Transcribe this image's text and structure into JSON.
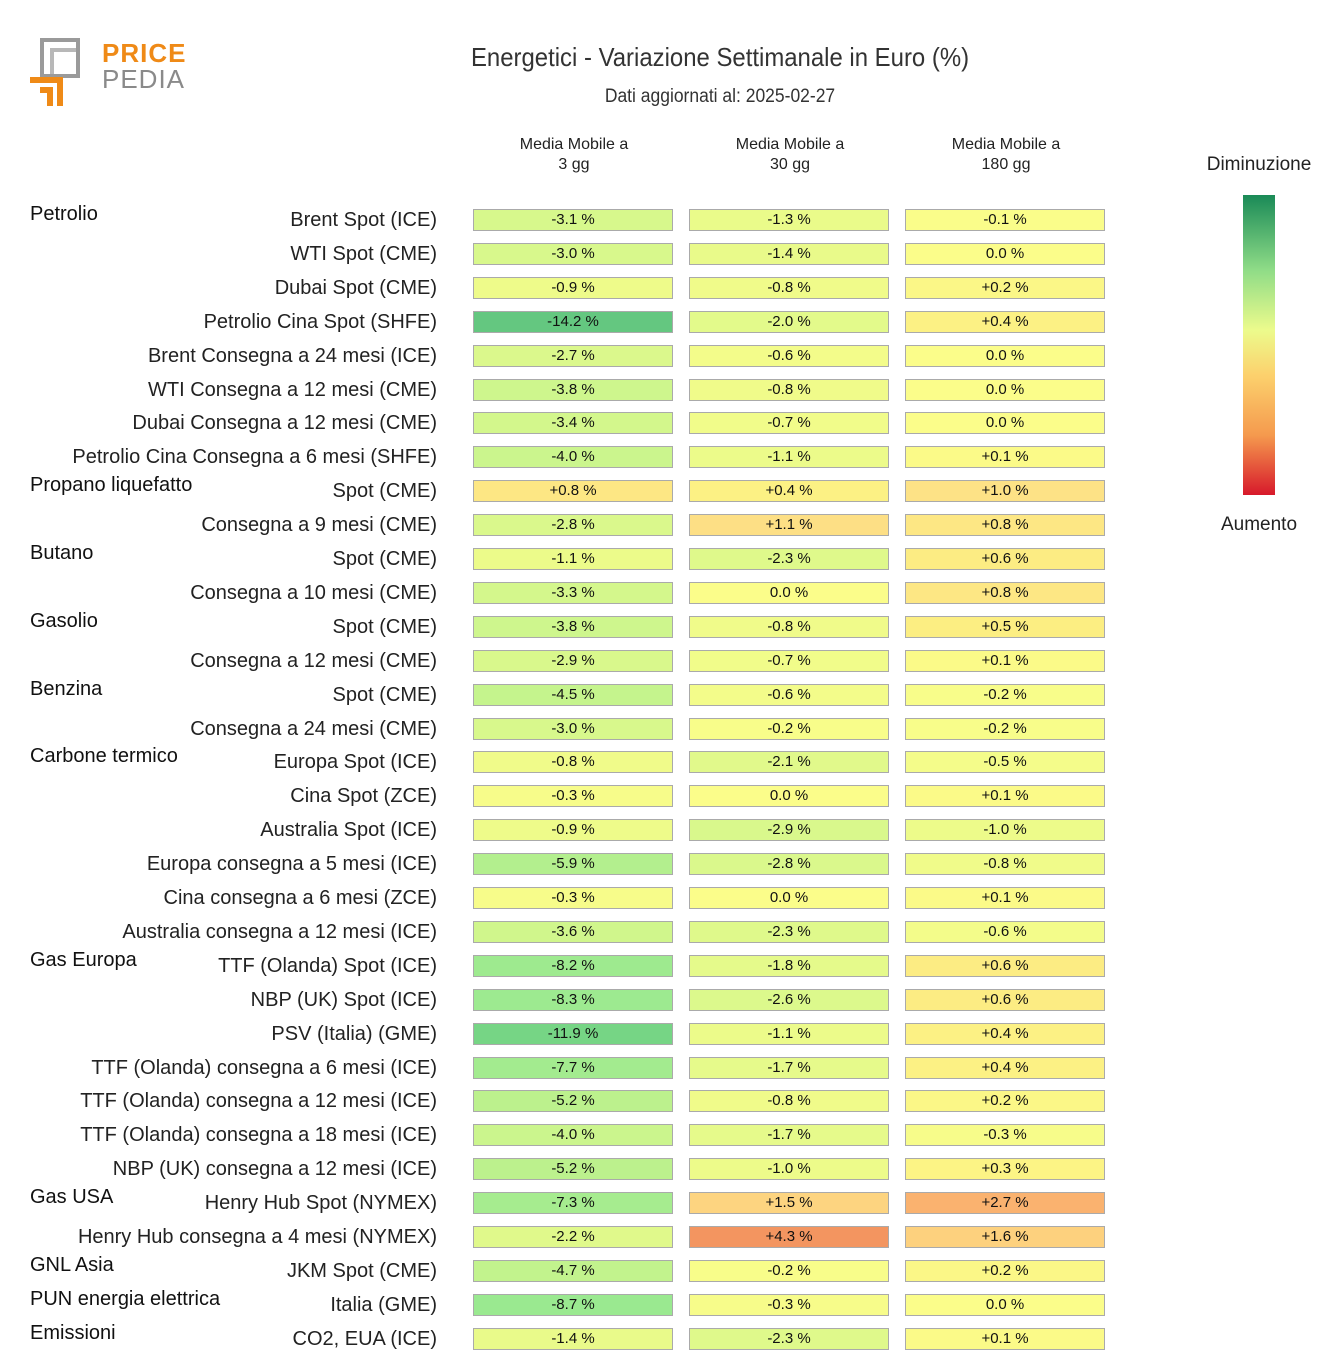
{
  "brand": {
    "line1": "PRICE",
    "line2": "PEDIA"
  },
  "title": "Energetici - Variazione Settimanale in Euro (%)",
  "subtitle": "Dati aggiornati al: 2025-02-27",
  "legend": {
    "top": "Diminuzione",
    "bottom": "Aumento"
  },
  "colors": {
    "decrease": "#1a8a57",
    "neutral": "#ecfb8c",
    "increase": "#d7192b"
  },
  "chart_data": {
    "type": "heatmap",
    "title": "Energetici - Variazione Settimanale in Euro (%)",
    "columns": [
      "Media Mobile a\n3 gg",
      "Media Mobile a\n30 gg",
      "Media Mobile a\n180 gg"
    ],
    "unit": "%",
    "rows": [
      {
        "group": "Petrolio",
        "label": "Brent Spot (ICE)",
        "values": [
          -3.1,
          -1.3,
          -0.1
        ]
      },
      {
        "group": "",
        "label": "WTI Spot (CME)",
        "values": [
          -3.0,
          -1.4,
          0.0
        ]
      },
      {
        "group": "",
        "label": "Dubai Spot (CME)",
        "values": [
          -0.9,
          -0.8,
          0.2
        ]
      },
      {
        "group": "",
        "label": "Petrolio Cina Spot (SHFE)",
        "values": [
          -14.2,
          -2.0,
          0.4
        ]
      },
      {
        "group": "",
        "label": "Brent Consegna a 24 mesi (ICE)",
        "values": [
          -2.7,
          -0.6,
          0.0
        ]
      },
      {
        "group": "",
        "label": "WTI Consegna a 12 mesi (CME)",
        "values": [
          -3.8,
          -0.8,
          0.0
        ]
      },
      {
        "group": "",
        "label": "Dubai Consegna a 12 mesi (CME)",
        "values": [
          -3.4,
          -0.7,
          0.0
        ]
      },
      {
        "group": "",
        "label": "Petrolio Cina Consegna a 6 mesi (SHFE)",
        "values": [
          -4.0,
          -1.1,
          0.1
        ]
      },
      {
        "group": "Propano liquefatto",
        "label": "Spot (CME)",
        "values": [
          0.8,
          0.4,
          1.0
        ]
      },
      {
        "group": "",
        "label": "Consegna a 9 mesi (CME)",
        "values": [
          -2.8,
          1.1,
          0.8
        ]
      },
      {
        "group": "Butano",
        "label": "Spot (CME)",
        "values": [
          -1.1,
          -2.3,
          0.6
        ]
      },
      {
        "group": "",
        "label": "Consegna a 10 mesi (CME)",
        "values": [
          -3.3,
          0.0,
          0.8
        ]
      },
      {
        "group": "Gasolio",
        "label": "Spot (CME)",
        "values": [
          -3.8,
          -0.8,
          0.5
        ]
      },
      {
        "group": "",
        "label": "Consegna a 12 mesi (CME)",
        "values": [
          -2.9,
          -0.7,
          0.1
        ]
      },
      {
        "group": "Benzina",
        "label": "Spot (CME)",
        "values": [
          -4.5,
          -0.6,
          -0.2
        ]
      },
      {
        "group": "",
        "label": "Consegna a 24 mesi (CME)",
        "values": [
          -3.0,
          -0.2,
          -0.2
        ]
      },
      {
        "group": "Carbone termico",
        "label": "Europa Spot (ICE)",
        "values": [
          -0.8,
          -2.1,
          -0.5
        ]
      },
      {
        "group": "",
        "label": "Cina Spot (ZCE)",
        "values": [
          -0.3,
          0.0,
          0.1
        ]
      },
      {
        "group": "",
        "label": "Australia Spot (ICE)",
        "values": [
          -0.9,
          -2.9,
          -1.0
        ]
      },
      {
        "group": "",
        "label": "Europa consegna a 5 mesi (ICE)",
        "values": [
          -5.9,
          -2.8,
          -0.8
        ]
      },
      {
        "group": "",
        "label": "Cina consegna a 6 mesi (ZCE)",
        "values": [
          -0.3,
          0.0,
          0.1
        ]
      },
      {
        "group": "",
        "label": "Australia consegna a 12 mesi (ICE)",
        "values": [
          -3.6,
          -2.3,
          -0.6
        ]
      },
      {
        "group": "Gas Europa",
        "label": "TTF (Olanda) Spot (ICE)",
        "values": [
          -8.2,
          -1.8,
          0.6
        ]
      },
      {
        "group": "",
        "label": "NBP (UK) Spot (ICE)",
        "values": [
          -8.3,
          -2.6,
          0.6
        ]
      },
      {
        "group": "",
        "label": "PSV (Italia) (GME)",
        "values": [
          -11.9,
          -1.1,
          0.4
        ]
      },
      {
        "group": "",
        "label": "TTF (Olanda) consegna a 6 mesi (ICE)",
        "values": [
          -7.7,
          -1.7,
          0.4
        ]
      },
      {
        "group": "",
        "label": "TTF (Olanda) consegna a 12 mesi (ICE)",
        "values": [
          -5.2,
          -0.8,
          0.2
        ]
      },
      {
        "group": "",
        "label": "TTF (Olanda) consegna a 18 mesi (ICE)",
        "values": [
          -4.0,
          -1.7,
          -0.3
        ]
      },
      {
        "group": "",
        "label": "NBP (UK) consegna a 12 mesi (ICE)",
        "values": [
          -5.2,
          -1.0,
          0.3
        ]
      },
      {
        "group": "Gas USA",
        "label": "Henry Hub Spot (NYMEX)",
        "values": [
          -7.3,
          1.5,
          2.7
        ]
      },
      {
        "group": "",
        "label": "Henry Hub consegna a 4 mesi (NYMEX)",
        "values": [
          -2.2,
          4.3,
          1.6
        ]
      },
      {
        "group": "GNL Asia",
        "label": "JKM Spot (CME)",
        "values": [
          -4.7,
          -0.2,
          0.2
        ]
      },
      {
        "group": "PUN energia elettrica",
        "label": "Italia (GME)",
        "values": [
          -8.7,
          -0.3,
          0.0
        ]
      },
      {
        "group": "Emissioni",
        "label": "CO2, EUA (ICE)",
        "values": [
          -1.4,
          -2.3,
          0.1
        ]
      }
    ]
  }
}
